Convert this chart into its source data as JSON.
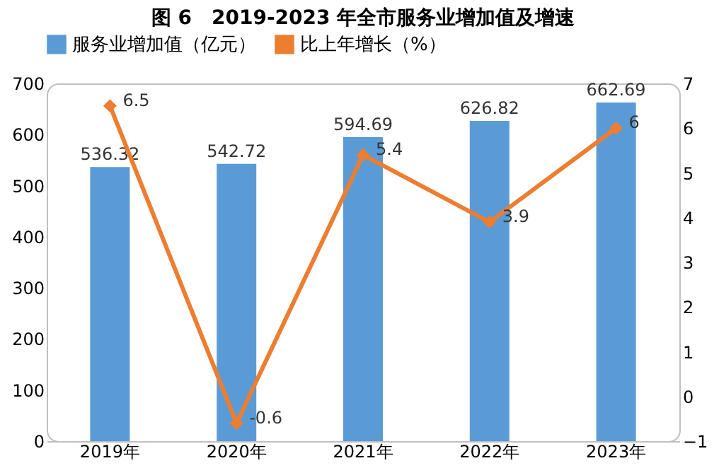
{
  "chart_data": {
    "type": "bar",
    "title": "图 6　2019-2023 年全市服务业增加值及增速",
    "categories": [
      "2019年",
      "2020年",
      "2021年",
      "2022年",
      "2023年"
    ],
    "series": [
      {
        "name": "服务业增加值（亿元）",
        "color": "#5b9bd5",
        "values": [
          536.32,
          542.72,
          594.69,
          626.82,
          662.69
        ]
      },
      {
        "name": "比上年增长（%）",
        "type": "line",
        "axis": "y2",
        "color": "#ed7d31",
        "marker": "diamond",
        "values": [
          6.5,
          -0.6,
          5.4,
          3.9,
          6
        ]
      }
    ],
    "ylim": [
      0,
      700
    ],
    "yticks": [
      0,
      100,
      200,
      300,
      400,
      500,
      600,
      700
    ],
    "y2lim": [
      -1,
      7
    ],
    "y2ticks": [
      -1,
      0,
      1,
      2,
      3,
      4,
      5,
      6,
      7
    ],
    "data_labels": true,
    "legend": "top",
    "grid": false
  }
}
